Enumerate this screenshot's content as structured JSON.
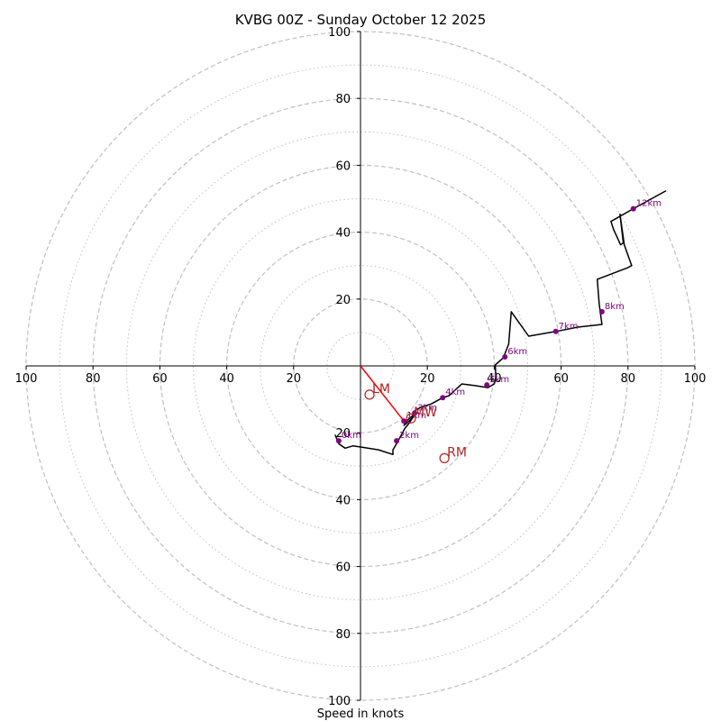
{
  "chart_data": {
    "type": "hodograph",
    "title": "KVBG 00Z - Sunday October 12 2025",
    "xlabel": "Speed in knots",
    "range": [
      -100,
      100
    ],
    "ring_major": [
      20,
      40,
      60,
      80,
      100
    ],
    "ring_minor": [
      10,
      30,
      50,
      70,
      90
    ],
    "x_ticks": [
      {
        "value": -100,
        "label": "100"
      },
      {
        "value": -80,
        "label": "80"
      },
      {
        "value": -60,
        "label": "60"
      },
      {
        "value": -40,
        "label": "40"
      },
      {
        "value": -20,
        "label": "20"
      },
      {
        "value": 20,
        "label": "20"
      },
      {
        "value": 40,
        "label": "40"
      },
      {
        "value": 60,
        "label": "60"
      },
      {
        "value": 80,
        "label": "80"
      },
      {
        "value": 100,
        "label": "100"
      }
    ],
    "y_ticks": [
      {
        "value": 100,
        "label": "100"
      },
      {
        "value": 80,
        "label": "80"
      },
      {
        "value": 60,
        "label": "60"
      },
      {
        "value": 40,
        "label": "40"
      },
      {
        "value": 20,
        "label": "20"
      },
      {
        "value": -20,
        "label": "20"
      },
      {
        "value": -40,
        "label": "40"
      },
      {
        "value": -60,
        "label": "60"
      },
      {
        "value": -80,
        "label": "80"
      },
      {
        "value": -100,
        "label": "100"
      }
    ],
    "hodograph": {
      "color": "#000000",
      "points": [
        [
          -7.6,
          -20.6
        ],
        [
          -6.5,
          -23.3
        ],
        [
          -4.6,
          -24.6
        ],
        [
          -2.2,
          -23.9
        ],
        [
          0.5,
          -24.3
        ],
        [
          5.4,
          -25.1
        ],
        [
          9.7,
          -26.5
        ],
        [
          9.7,
          -25.1
        ],
        [
          11.1,
          -22.7
        ],
        [
          13.2,
          -18.8
        ],
        [
          14.6,
          -17.0
        ],
        [
          16.2,
          -14.6
        ],
        [
          17.0,
          -14.1
        ],
        [
          15.9,
          -15.1
        ],
        [
          14.9,
          -16.2
        ],
        [
          13.0,
          -17.8
        ],
        [
          14.1,
          -16.2
        ],
        [
          15.4,
          -15.1
        ],
        [
          15.9,
          -14.3
        ],
        [
          16.5,
          -13.2
        ],
        [
          18.4,
          -12.2
        ],
        [
          21.1,
          -11.4
        ],
        [
          24.6,
          -9.5
        ],
        [
          26.5,
          -8.9
        ],
        [
          30.3,
          -5.4
        ],
        [
          34.3,
          -5.9
        ],
        [
          38.1,
          -6.5
        ],
        [
          40.0,
          -5.4
        ],
        [
          40.5,
          -3.5
        ],
        [
          40.3,
          0.3
        ],
        [
          42.7,
          2.4
        ],
        [
          44.3,
          6.5
        ],
        [
          45.1,
          16.2
        ],
        [
          50.3,
          8.9
        ],
        [
          58.4,
          10.3
        ],
        [
          64.9,
          11.6
        ],
        [
          72.2,
          12.4
        ],
        [
          71.4,
          18.4
        ],
        [
          70.8,
          25.9
        ],
        [
          80.0,
          29.4
        ],
        [
          81.1,
          30.0
        ],
        [
          78.9,
          36.2
        ],
        [
          77.6,
          45.4
        ],
        [
          78.6,
          36.8
        ],
        [
          77.8,
          36.2
        ],
        [
          75.7,
          40.8
        ],
        [
          74.9,
          43.2
        ],
        [
          81.6,
          47.0
        ],
        [
          91.4,
          52.4
        ]
      ]
    },
    "height_markers": [
      {
        "label": "0km",
        "u": -6.5,
        "v": -22.4
      },
      {
        "label": "1km",
        "u": 13.0,
        "v": -16.5
      },
      {
        "label": "2km",
        "u": 10.8,
        "v": -22.4
      },
      {
        "label": "3km",
        "u": 16.2,
        "v": -14.1
      },
      {
        "label": "4km",
        "u": 24.6,
        "v": -9.5
      },
      {
        "label": "5km",
        "u": 37.8,
        "v": -5.7
      },
      {
        "label": "6km",
        "u": 43.2,
        "v": 2.7
      },
      {
        "label": "7km",
        "u": 58.4,
        "v": 10.3
      },
      {
        "label": "8km",
        "u": 72.2,
        "v": 16.2
      },
      {
        "label": "12km",
        "u": 81.6,
        "v": 47.0
      }
    ],
    "height_marker_color": "#800080",
    "motions": [
      {
        "label": "LM",
        "u": 2.7,
        "v": -8.6
      },
      {
        "label": "MW",
        "u": 15.1,
        "v": -15.7
      },
      {
        "label": "RM",
        "u": 25.1,
        "v": -27.6
      }
    ],
    "motion_color": "#b22222",
    "shear_vector": {
      "from": [
        0,
        0
      ],
      "to": [
        13.0,
        -16.5
      ],
      "color": "#ff0000"
    },
    "grid_color": "#bfbfbf"
  }
}
